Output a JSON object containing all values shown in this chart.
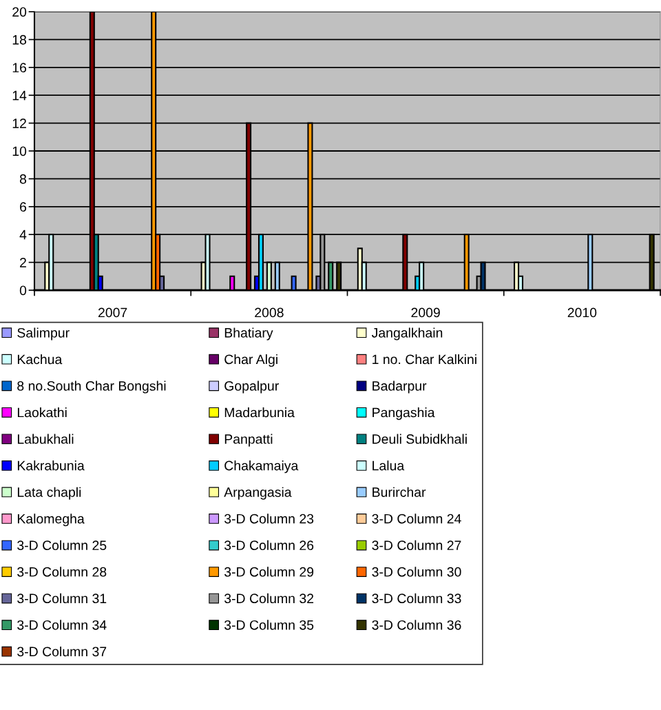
{
  "chart_data": {
    "type": "bar",
    "categories": [
      "2007",
      "2008",
      "2009",
      "2010"
    ],
    "ylim": [
      0,
      20
    ],
    "yticks": [
      0,
      2,
      4,
      6,
      8,
      10,
      12,
      14,
      16,
      18,
      20
    ],
    "grid": "y",
    "legend": "bottom",
    "series": [
      {
        "name": "Salimpur",
        "color": "#9999ff",
        "values": [
          0,
          0,
          0,
          0
        ]
      },
      {
        "name": "Bhatiary",
        "color": "#993366",
        "values": [
          0,
          0,
          0,
          0
        ]
      },
      {
        "name": "Jangalkhain",
        "color": "#ffffcc",
        "values": [
          2,
          2,
          3,
          2
        ]
      },
      {
        "name": "Kachua",
        "color": "#ccffff",
        "values": [
          4,
          4,
          2,
          1
        ]
      },
      {
        "name": "Char Algi",
        "color": "#660066",
        "values": [
          0,
          0,
          0,
          0
        ]
      },
      {
        "name": "1 no. Char Kalkini",
        "color": "#ff8080",
        "values": [
          0,
          0,
          0,
          0
        ]
      },
      {
        "name": "8 no.South Char Bongshi",
        "color": "#0066cc",
        "values": [
          0,
          0,
          0,
          0
        ]
      },
      {
        "name": "Gopalpur",
        "color": "#ccccff",
        "values": [
          0,
          0,
          0,
          0
        ]
      },
      {
        "name": "Badarpur",
        "color": "#000080",
        "values": [
          0,
          0,
          0,
          0
        ]
      },
      {
        "name": "Laokathi",
        "color": "#ff00ff",
        "values": [
          0,
          1,
          0,
          0
        ]
      },
      {
        "name": "Madarbunia",
        "color": "#ffff00",
        "values": [
          0,
          0,
          0,
          0
        ]
      },
      {
        "name": "Pangashia",
        "color": "#00ffff",
        "values": [
          0,
          0,
          0,
          0
        ]
      },
      {
        "name": "Labukhali",
        "color": "#800080",
        "values": [
          0,
          0,
          0,
          0
        ]
      },
      {
        "name": "Panpatti",
        "color": "#800000",
        "values": [
          20,
          12,
          4,
          0
        ]
      },
      {
        "name": "Deuli Subidkhali",
        "color": "#008080",
        "values": [
          4,
          0,
          0,
          0
        ]
      },
      {
        "name": "Kakrabunia",
        "color": "#0000ff",
        "values": [
          1,
          1,
          0,
          0
        ]
      },
      {
        "name": "Chakamaiya",
        "color": "#00ccff",
        "values": [
          0,
          4,
          1,
          0
        ]
      },
      {
        "name": "Lalua",
        "color": "#ccffff",
        "values": [
          0,
          0,
          2,
          0
        ]
      },
      {
        "name": "Lata chapli",
        "color": "#ccffcc",
        "values": [
          0,
          2,
          0,
          0
        ]
      },
      {
        "name": "Arpangasia",
        "color": "#ffff99",
        "values": [
          0,
          0,
          0,
          0
        ]
      },
      {
        "name": "Burirchar",
        "color": "#99ccff",
        "values": [
          0,
          2,
          0,
          4
        ]
      },
      {
        "name": "Kalomegha",
        "color": "#ff99cc",
        "values": [
          0,
          0,
          0,
          0
        ]
      },
      {
        "name": "3-D Column 23",
        "color": "#cc99ff",
        "values": [
          0,
          0,
          0,
          0
        ]
      },
      {
        "name": "3-D Column 24",
        "color": "#ffcc99",
        "values": [
          0,
          0,
          0,
          0
        ]
      },
      {
        "name": "3-D Column 25",
        "color": "#3366ff",
        "values": [
          0,
          1,
          0,
          0
        ]
      },
      {
        "name": "3-D Column 26",
        "color": "#33cccc",
        "values": [
          0,
          0,
          0,
          0
        ]
      },
      {
        "name": "3-D Column 27",
        "color": "#99cc00",
        "values": [
          0,
          0,
          0,
          0
        ]
      },
      {
        "name": "3-D Column 28",
        "color": "#ffcc00",
        "values": [
          0,
          0,
          0,
          0
        ]
      },
      {
        "name": "3-D Column 29",
        "color": "#ff9900",
        "values": [
          20,
          12,
          4,
          0
        ]
      },
      {
        "name": "3-D Column 30",
        "color": "#ff6600",
        "values": [
          4,
          0,
          0,
          0
        ]
      },
      {
        "name": "3-D Column 31",
        "color": "#666699",
        "values": [
          1,
          1,
          0,
          0
        ]
      },
      {
        "name": "3-D Column 32",
        "color": "#969696",
        "values": [
          0,
          4,
          1,
          0
        ]
      },
      {
        "name": "3-D Column 33",
        "color": "#003366",
        "values": [
          0,
          0,
          2,
          0
        ]
      },
      {
        "name": "3-D Column 34",
        "color": "#339966",
        "values": [
          0,
          2,
          0,
          0
        ]
      },
      {
        "name": "3-D Column 35",
        "color": "#003300",
        "values": [
          0,
          0,
          0,
          0
        ]
      },
      {
        "name": "3-D Column 36",
        "color": "#333300",
        "values": [
          0,
          2,
          0,
          4
        ]
      },
      {
        "name": "3-D Column 37",
        "color": "#993300",
        "values": [
          0,
          0,
          0,
          0
        ]
      }
    ]
  }
}
